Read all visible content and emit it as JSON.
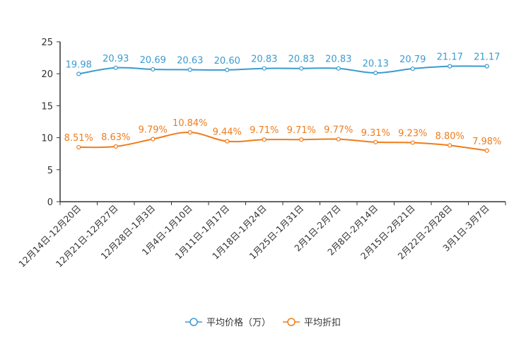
{
  "chart_data": {
    "type": "line",
    "categories": [
      "12月14日-12月20日",
      "12月21日-12月27日",
      "12月28日-1月3日",
      "1月4日-1月10日",
      "1月11日-1月17日",
      "1月18日-1月24日",
      "1月25日-1月31日",
      "2月1日-2月7日",
      "2月8日-2月14日",
      "2月15日-2月21日",
      "2月22日-2月28日",
      "3月1日-3月7日"
    ],
    "series": [
      {
        "name": "平均价格（万）",
        "color": "#3a9bd0",
        "values": [
          19.98,
          20.93,
          20.69,
          20.63,
          20.6,
          20.83,
          20.83,
          20.83,
          20.13,
          20.79,
          21.17,
          21.17
        ],
        "labels": [
          "19.98",
          "20.93",
          "20.69",
          "20.63",
          "20.60",
          "20.83",
          "20.83",
          "20.83",
          "20.13",
          "20.79",
          "21.17",
          "21.17"
        ]
      },
      {
        "name": "平均折扣",
        "color": "#f07c1a",
        "values": [
          8.51,
          8.63,
          9.79,
          10.84,
          9.44,
          9.71,
          9.71,
          9.77,
          9.31,
          9.23,
          8.8,
          7.98
        ],
        "labels": [
          "8.51%",
          "8.63%",
          "9.79%",
          "10.84%",
          "9.44%",
          "9.71%",
          "9.71%",
          "9.77%",
          "9.31%",
          "9.23%",
          "8.80%",
          "7.98%"
        ]
      }
    ],
    "yticks": [
      "0",
      "5",
      "10",
      "15",
      "20",
      "25"
    ],
    "ylim": [
      0,
      25
    ],
    "legend_position": "bottom-center",
    "grid": false,
    "axis_color": "#333333"
  }
}
